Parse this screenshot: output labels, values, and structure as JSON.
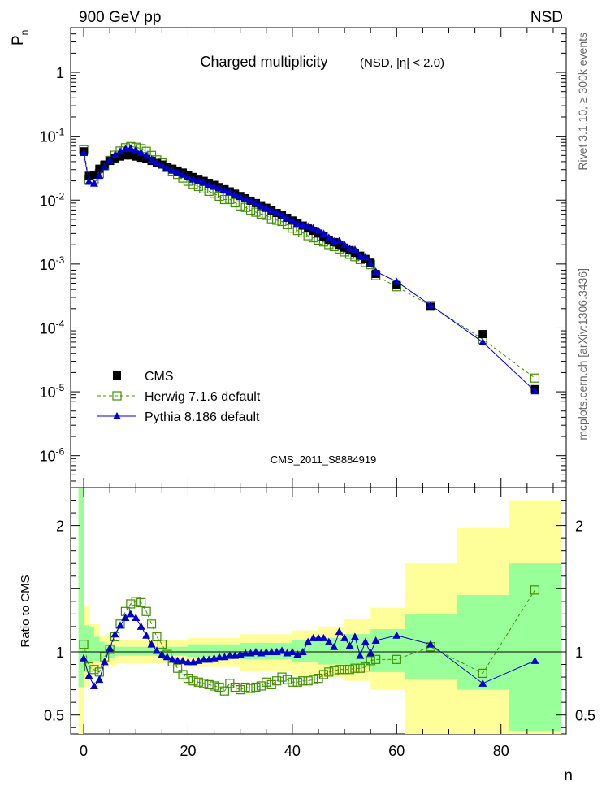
{
  "header": {
    "left": "900 GeV pp",
    "right": "NSD",
    "side_top": "Rivet 3.1.10, ≥ 300k events",
    "side_bottom": "mcplots.cern.ch [arXiv:1306.3436]"
  },
  "chart_data": {
    "type": "scatter",
    "title": "Charged multiplicity",
    "subtitle": "(NSD, |η| < 2.0)",
    "watermark": "CMS_2011_S8884919",
    "xlabel": "n",
    "ylabel_main": "P_n",
    "ylabel_ratio": "Ratio to CMS",
    "xlim": [
      -2.5,
      92.5
    ],
    "ylim_log10": [
      -6.5,
      0.7
    ],
    "ratio_ylim": [
      0.35,
      2.3
    ],
    "x_ticks": [
      "0",
      "20",
      "40",
      "60",
      "80"
    ],
    "y_ticks_main": [
      {
        "b": "1",
        "e": ""
      },
      {
        "b": "10",
        "e": "-1"
      },
      {
        "b": "10",
        "e": "-2"
      },
      {
        "b": "10",
        "e": "-3"
      },
      {
        "b": "10",
        "e": "-4"
      },
      {
        "b": "10",
        "e": "-5"
      },
      {
        "b": "10",
        "e": "-6"
      }
    ],
    "y_ticks_ratio": [
      "2",
      "1",
      "0.5"
    ],
    "legend": [
      {
        "name": "CMS",
        "color": "#000000",
        "marker": "square-filled"
      },
      {
        "name": "Herwig 7.1.6 default",
        "color": "#3f8f00",
        "marker": "square-open",
        "line": "dashed"
      },
      {
        "name": "Pythia 8.186 default",
        "color": "#0000cc",
        "marker": "triangle",
        "line": "solid"
      }
    ],
    "cms": {
      "x": [
        0,
        1,
        2,
        3,
        4,
        5,
        6,
        7,
        8,
        9,
        10,
        11,
        12,
        13,
        14,
        15,
        16,
        17,
        18,
        19,
        20,
        21,
        22,
        23,
        24,
        25,
        26,
        27,
        28,
        29,
        30,
        31,
        32,
        33,
        34,
        35,
        36,
        37,
        38,
        39,
        40,
        41,
        42,
        43,
        44,
        45,
        46,
        47,
        48,
        49,
        50,
        51,
        52,
        53,
        54,
        55,
        56,
        60,
        66.5,
        76.5,
        86.5
      ],
      "y": [
        0.058,
        0.024,
        0.025,
        0.031,
        0.036,
        0.041,
        0.045,
        0.048,
        0.05,
        0.05,
        0.048,
        0.046,
        0.044,
        0.041,
        0.038,
        0.036,
        0.033,
        0.031,
        0.029,
        0.027,
        0.025,
        0.023,
        0.0215,
        0.02,
        0.0186,
        0.0173,
        0.016,
        0.0148,
        0.0137,
        0.0126,
        0.0116,
        0.0107,
        0.0098,
        0.009,
        0.0083,
        0.0076,
        0.0069,
        0.0063,
        0.0058,
        0.0053,
        0.0048,
        0.0044,
        0.004,
        0.0036,
        0.0033,
        0.003,
        0.0027,
        0.0024,
        0.0022,
        0.002,
        0.0018,
        0.00165,
        0.0015,
        0.00135,
        0.0012,
        0.00105,
        0.0007,
        0.00047,
        0.000215,
        8e-05,
        1.1e-05
      ],
      "ratio_band_stat": [
        [
          -1,
          0,
          0.72,
          2.3
        ],
        [
          0,
          1,
          0.85,
          1.21
        ],
        [
          1,
          2,
          0.92,
          1.2
        ],
        [
          2,
          3,
          0.93,
          1.12
        ],
        [
          3,
          4,
          0.94,
          1.08
        ],
        [
          4,
          6,
          0.95,
          1.06
        ],
        [
          6,
          20,
          0.97,
          1.04
        ],
        [
          20,
          30,
          0.96,
          1.06
        ],
        [
          30,
          40,
          0.94,
          1.07
        ],
        [
          40,
          45,
          0.92,
          1.09
        ],
        [
          45,
          50,
          0.9,
          1.11
        ],
        [
          50,
          55,
          0.88,
          1.14
        ],
        [
          55,
          61.5,
          0.84,
          1.18
        ],
        [
          61.5,
          71.5,
          0.78,
          1.3
        ],
        [
          71.5,
          81.5,
          0.7,
          1.45
        ],
        [
          81.5,
          91.5,
          0.37,
          1.7
        ]
      ],
      "ratio_band_total": [
        [
          -1,
          0,
          0.35,
          2.3
        ],
        [
          0,
          1,
          0.72,
          1.36
        ],
        [
          1,
          3,
          0.84,
          1.22
        ],
        [
          3,
          6,
          0.88,
          1.13
        ],
        [
          6,
          20,
          0.91,
          1.09
        ],
        [
          20,
          30,
          0.88,
          1.11
        ],
        [
          30,
          40,
          0.85,
          1.14
        ],
        [
          40,
          45,
          0.82,
          1.17
        ],
        [
          45,
          50,
          0.8,
          1.2
        ],
        [
          50,
          55,
          0.77,
          1.26
        ],
        [
          55,
          61.5,
          0.7,
          1.35
        ],
        [
          61.5,
          71.5,
          0.35,
          1.7
        ],
        [
          71.5,
          81.5,
          0.35,
          1.98
        ],
        [
          81.5,
          91.5,
          0.35,
          2.2
        ]
      ]
    },
    "herwig_ratio": {
      "x": [
        0,
        1,
        2,
        3,
        4,
        5,
        6,
        7,
        8,
        9,
        10,
        11,
        12,
        13,
        14,
        15,
        16,
        17,
        18,
        19,
        20,
        21,
        22,
        23,
        24,
        25,
        26,
        27,
        28,
        29,
        30,
        31,
        32,
        33,
        34,
        35,
        36,
        37,
        38,
        39,
        40,
        41,
        42,
        43,
        44,
        45,
        46,
        47,
        48,
        49,
        50,
        51,
        52,
        53,
        54,
        55,
        56,
        60,
        66.5,
        76.5,
        86.5
      ],
      "r": [
        1.06,
        0.88,
        0.86,
        0.84,
        0.96,
        1.02,
        1.12,
        1.22,
        1.32,
        1.38,
        1.4,
        1.39,
        1.32,
        1.22,
        1.12,
        1.06,
        0.98,
        0.92,
        0.87,
        0.82,
        0.79,
        0.77,
        0.76,
        0.75,
        0.74,
        0.73,
        0.72,
        0.69,
        0.75,
        0.72,
        0.7,
        0.72,
        0.71,
        0.72,
        0.73,
        0.76,
        0.74,
        0.77,
        0.8,
        0.78,
        0.76,
        0.76,
        0.77,
        0.77,
        0.78,
        0.79,
        0.82,
        0.84,
        0.85,
        0.86,
        0.86,
        0.86,
        0.87,
        0.87,
        0.88,
        0.93,
        0.94,
        0.94,
        1.04,
        0.83,
        1.49
      ]
    },
    "pythia_ratio": {
      "x": [
        0,
        1,
        2,
        3,
        4,
        5,
        6,
        7,
        8,
        9,
        10,
        11,
        12,
        13,
        14,
        15,
        16,
        17,
        18,
        19,
        20,
        21,
        22,
        23,
        24,
        25,
        26,
        27,
        28,
        29,
        30,
        31,
        32,
        33,
        34,
        35,
        36,
        37,
        38,
        39,
        40,
        41,
        42,
        43,
        44,
        45,
        46,
        47,
        48,
        49,
        50,
        51,
        52,
        53,
        54,
        55,
        56,
        60,
        66.5,
        76.5,
        86.5
      ],
      "r": [
        0.95,
        0.81,
        0.73,
        0.78,
        0.92,
        1.03,
        1.14,
        1.21,
        1.27,
        1.3,
        1.27,
        1.2,
        1.13,
        1.06,
        1.01,
        0.98,
        0.96,
        0.94,
        0.93,
        0.93,
        0.92,
        0.92,
        0.93,
        0.94,
        0.94,
        0.95,
        0.96,
        0.96,
        0.97,
        0.97,
        0.98,
        0.99,
        0.99,
        1.0,
        0.99,
        1.0,
        1.0,
        1.0,
        1.01,
        0.99,
        1.0,
        0.98,
        1.0,
        1.08,
        1.11,
        1.11,
        1.11,
        1.08,
        1.04,
        1.16,
        1.11,
        1.05,
        1.12,
        0.97,
        1.08,
        0.99,
        1.09,
        1.13,
        1.06,
        0.75,
        0.93
      ]
    }
  }
}
